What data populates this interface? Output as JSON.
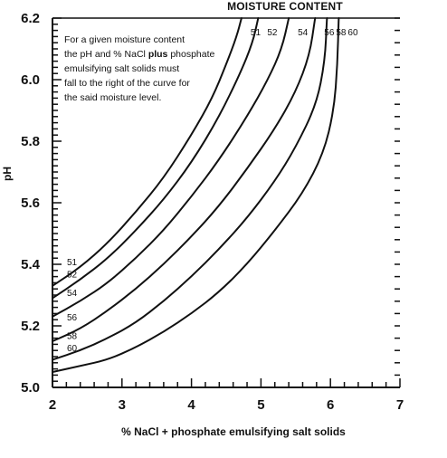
{
  "chart_data": {
    "type": "line",
    "title": "MOISTURE CONTENT",
    "xlabel": "% NaCl + phosphate emulsifying salt solids",
    "ylabel": "pH",
    "xlim": [
      2,
      7
    ],
    "ylim": [
      5.0,
      6.2
    ],
    "x_ticks": [
      "2",
      "3",
      "4",
      "5",
      "6",
      "7"
    ],
    "y_ticks": [
      "5.0",
      "5.2",
      "5.4",
      "5.6",
      "5.8",
      "6.0",
      "6.2"
    ],
    "grid": false,
    "annotation": {
      "lines": [
        {
          "parts": [
            {
              "text": "For a given moisture content",
              "bold": false
            }
          ]
        },
        {
          "parts": [
            {
              "text": "the pH and % NaCl ",
              "bold": false
            },
            {
              "text": "plus",
              "bold": true
            },
            {
              "text": " phosphate",
              "bold": false
            }
          ]
        },
        {
          "parts": [
            {
              "text": "emulsifying salt solids must",
              "bold": false
            }
          ]
        },
        {
          "parts": [
            {
              "text": "fall to the right of the curve for",
              "bold": false
            }
          ]
        },
        {
          "parts": [
            {
              "text": "the said moisture level.",
              "bold": false
            }
          ]
        }
      ]
    },
    "series": [
      {
        "name": "51",
        "points": [
          [
            2.0,
            5.33
          ],
          [
            2.4,
            5.39
          ],
          [
            2.8,
            5.47
          ],
          [
            3.2,
            5.57
          ],
          [
            3.6,
            5.68
          ],
          [
            4.0,
            5.82
          ],
          [
            4.3,
            5.94
          ],
          [
            4.5,
            6.05
          ],
          [
            4.65,
            6.14
          ],
          [
            4.72,
            6.2
          ]
        ]
      },
      {
        "name": "52",
        "points": [
          [
            2.0,
            5.29
          ],
          [
            2.4,
            5.35
          ],
          [
            2.8,
            5.42
          ],
          [
            3.2,
            5.51
          ],
          [
            3.6,
            5.61
          ],
          [
            4.0,
            5.73
          ],
          [
            4.4,
            5.88
          ],
          [
            4.7,
            6.02
          ],
          [
            4.88,
            6.12
          ],
          [
            4.96,
            6.2
          ]
        ]
      },
      {
        "name": "54",
        "points": [
          [
            2.0,
            5.23
          ],
          [
            2.4,
            5.28
          ],
          [
            2.8,
            5.34
          ],
          [
            3.2,
            5.42
          ],
          [
            3.6,
            5.51
          ],
          [
            4.0,
            5.62
          ],
          [
            4.4,
            5.74
          ],
          [
            4.8,
            5.88
          ],
          [
            5.1,
            6.0
          ],
          [
            5.3,
            6.1
          ],
          [
            5.4,
            6.2
          ]
        ]
      },
      {
        "name": "56",
        "points": [
          [
            2.0,
            5.15
          ],
          [
            2.4,
            5.19
          ],
          [
            2.8,
            5.25
          ],
          [
            3.2,
            5.32
          ],
          [
            3.6,
            5.4
          ],
          [
            4.0,
            5.49
          ],
          [
            4.4,
            5.59
          ],
          [
            4.8,
            5.71
          ],
          [
            5.2,
            5.84
          ],
          [
            5.5,
            5.96
          ],
          [
            5.7,
            6.08
          ],
          [
            5.78,
            6.2
          ]
        ]
      },
      {
        "name": "58",
        "points": [
          [
            2.0,
            5.09
          ],
          [
            2.4,
            5.12
          ],
          [
            2.8,
            5.16
          ],
          [
            3.2,
            5.21
          ],
          [
            3.6,
            5.28
          ],
          [
            4.0,
            5.36
          ],
          [
            4.4,
            5.45
          ],
          [
            4.8,
            5.55
          ],
          [
            5.2,
            5.67
          ],
          [
            5.5,
            5.78
          ],
          [
            5.8,
            5.92
          ],
          [
            5.92,
            6.06
          ],
          [
            5.95,
            6.2
          ]
        ]
      },
      {
        "name": "60",
        "points": [
          [
            2.0,
            5.05
          ],
          [
            2.4,
            5.07
          ],
          [
            2.8,
            5.09
          ],
          [
            3.2,
            5.13
          ],
          [
            3.6,
            5.18
          ],
          [
            4.0,
            5.24
          ],
          [
            4.4,
            5.31
          ],
          [
            4.8,
            5.4
          ],
          [
            5.2,
            5.51
          ],
          [
            5.6,
            5.63
          ],
          [
            5.9,
            5.76
          ],
          [
            6.05,
            5.9
          ],
          [
            6.1,
            6.05
          ],
          [
            6.12,
            6.2
          ]
        ]
      }
    ]
  }
}
